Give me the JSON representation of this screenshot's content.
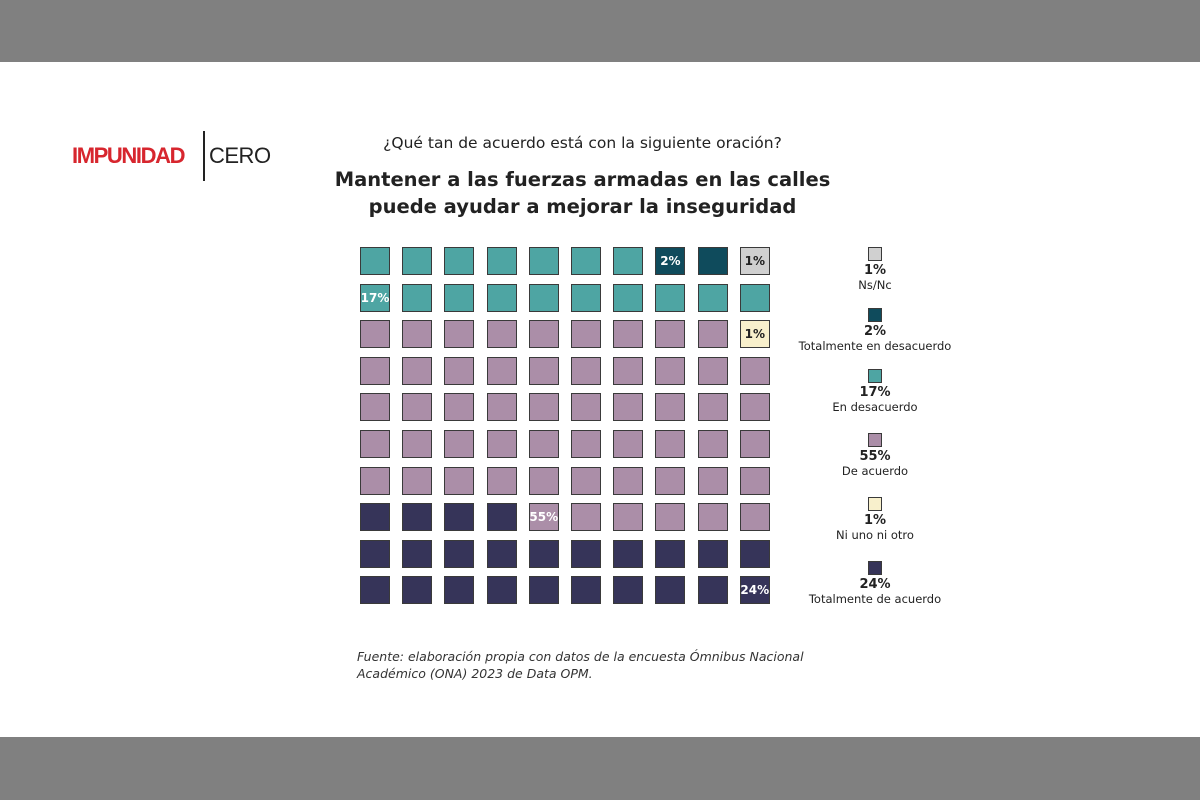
{
  "logo": {
    "part1": "IMPUNIDAD",
    "part2": "CERO",
    "color": "#d7262e"
  },
  "chart_data": {
    "type": "waffle",
    "subtitle": "¿Qué tan de acuerdo está con la siguiente oración?",
    "title_lines": [
      "Mantener a las fuerzas armadas en las calles",
      "puede ayudar a mejorar la inseguridad"
    ],
    "grid": {
      "rows": 10,
      "cols": 10
    },
    "categories": [
      {
        "key": "ns",
        "value_label": "1%",
        "label": "Ns/Nc",
        "value": 1,
        "color": "#d0d0d0",
        "text_color": "#222222"
      },
      {
        "key": "td",
        "value_label": "2%",
        "label": "Totalmente en desacuerdo",
        "value": 2,
        "color": "#0f4b5c",
        "text_color": "#ffffff"
      },
      {
        "key": "ed",
        "value_label": "17%",
        "label": "En desacuerdo",
        "value": 17,
        "color": "#4ea5a3",
        "text_color": "#ffffff"
      },
      {
        "key": "da",
        "value_label": "55%",
        "label": "De acuerdo",
        "value": 55,
        "color": "#ab8ea8",
        "text_color": "#ffffff"
      },
      {
        "key": "nn",
        "value_label": "1%",
        "label": "Ni uno ni otro",
        "value": 1,
        "color": "#f8f0cc",
        "text_color": "#222222"
      },
      {
        "key": "ta",
        "value_label": "24%",
        "label": "Totalmente de acuerdo",
        "value": 24,
        "color": "#363459",
        "text_color": "#ffffff"
      }
    ],
    "cells": [
      [
        "ed",
        "ed",
        "ed",
        "ed",
        "ed",
        "ed",
        "ed",
        "td",
        "td",
        "ns"
      ],
      [
        "ed",
        "ed",
        "ed",
        "ed",
        "ed",
        "ed",
        "ed",
        "ed",
        "ed",
        "ed"
      ],
      [
        "da",
        "da",
        "da",
        "da",
        "da",
        "da",
        "da",
        "da",
        "da",
        "nn"
      ],
      [
        "da",
        "da",
        "da",
        "da",
        "da",
        "da",
        "da",
        "da",
        "da",
        "da"
      ],
      [
        "da",
        "da",
        "da",
        "da",
        "da",
        "da",
        "da",
        "da",
        "da",
        "da"
      ],
      [
        "da",
        "da",
        "da",
        "da",
        "da",
        "da",
        "da",
        "da",
        "da",
        "da"
      ],
      [
        "da",
        "da",
        "da",
        "da",
        "da",
        "da",
        "da",
        "da",
        "da",
        "da"
      ],
      [
        "ta",
        "ta",
        "ta",
        "ta",
        "da",
        "da",
        "da",
        "da",
        "da",
        "da"
      ],
      [
        "ta",
        "ta",
        "ta",
        "ta",
        "ta",
        "ta",
        "ta",
        "ta",
        "ta",
        "ta"
      ],
      [
        "ta",
        "ta",
        "ta",
        "ta",
        "ta",
        "ta",
        "ta",
        "ta",
        "ta",
        "ta"
      ]
    ],
    "cell_labels": [
      {
        "row": 0,
        "col": 7,
        "text": "2%",
        "key": "td"
      },
      {
        "row": 0,
        "col": 9,
        "text": "1%",
        "key": "ns"
      },
      {
        "row": 1,
        "col": 0,
        "text": "17%",
        "key": "ed"
      },
      {
        "row": 2,
        "col": 9,
        "text": "1%",
        "key": "nn"
      },
      {
        "row": 7,
        "col": 4,
        "text": "55%",
        "key": "da"
      },
      {
        "row": 9,
        "col": 9,
        "text": "24%",
        "key": "ta"
      }
    ]
  },
  "source": "Fuente: elaboración propia con datos de la encuesta Ómnibus Nacional Académico (ONA) 2023 de Data OPM."
}
